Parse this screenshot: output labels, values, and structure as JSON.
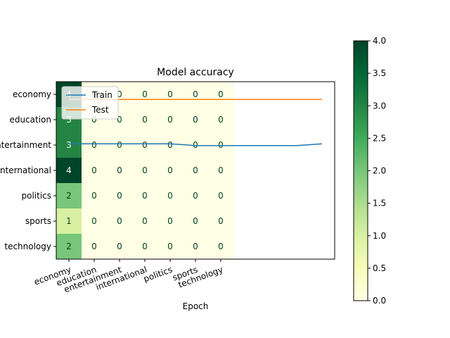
{
  "chart_data": [
    {
      "type": "heatmap",
      "title": "Model accuracy",
      "xlabel": "Epoch",
      "ylabel": "",
      "row_labels": [
        "economy",
        "education",
        "entertainment",
        "international",
        "politics",
        "sports",
        "technology"
      ],
      "col_labels": [
        "economy",
        "education",
        "entertainment",
        "international",
        "politics",
        "sports",
        "technology"
      ],
      "values": [
        [
          4,
          0,
          0,
          0,
          0,
          0,
          0
        ],
        [
          3,
          0,
          0,
          0,
          0,
          0,
          0
        ],
        [
          3,
          0,
          0,
          0,
          0,
          0,
          0
        ],
        [
          4,
          0,
          0,
          0,
          0,
          0,
          0
        ],
        [
          2,
          0,
          0,
          0,
          0,
          0,
          0
        ],
        [
          1,
          0,
          0,
          0,
          0,
          0,
          0
        ],
        [
          2,
          0,
          0,
          0,
          0,
          0,
          0
        ]
      ],
      "colormap": "YlGn",
      "vmin": 0,
      "vmax": 4,
      "colorbar_ticks": [
        "0.0",
        "0.5",
        "1.0",
        "1.5",
        "2.0",
        "2.5",
        "3.0",
        "3.5",
        "4.0"
      ]
    },
    {
      "type": "line",
      "x": [
        0,
        1,
        2,
        3,
        4,
        5,
        6,
        7,
        8,
        9,
        10
      ],
      "series": [
        {
          "name": "Train",
          "color": "#1f77b4",
          "values": [
            0.35,
            0.35,
            0.35,
            0.35,
            0.35,
            0.36,
            0.36,
            0.36,
            0.36,
            0.36,
            0.35
          ]
        },
        {
          "name": "Test",
          "color": "#ff7f0e",
          "values": [
            0.1,
            0.1,
            0.1,
            0.1,
            0.1,
            0.1,
            0.1,
            0.1,
            0.1,
            0.1,
            0.1
          ]
        }
      ],
      "legend_position": "upper-left"
    }
  ]
}
